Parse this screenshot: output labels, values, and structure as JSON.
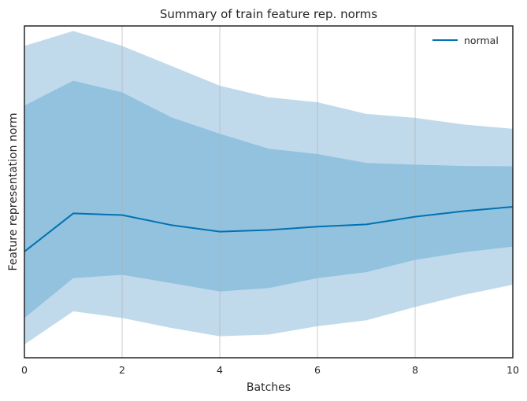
{
  "chart_data": {
    "type": "area",
    "title": "Summary of train feature rep. norms",
    "xlabel": "Batches",
    "ylabel": "Feature representation norm",
    "xlim": [
      0,
      10
    ],
    "ylim": [
      0,
      100
    ],
    "xticks": [
      0,
      2,
      4,
      6,
      8,
      10
    ],
    "show_y_ticks": false,
    "grid": "vertical",
    "legend": {
      "placement": "top-right",
      "entries": [
        "normal"
      ]
    },
    "x": [
      0,
      1,
      2,
      3,
      4,
      5,
      6,
      7,
      8,
      9,
      10
    ],
    "series": [
      {
        "name": "normal",
        "mean": [
          32,
          43.5,
          43,
          40,
          38,
          38.5,
          39.5,
          40.2,
          42.5,
          44.2,
          45.5
        ],
        "band_inner": {
          "lower": [
            12,
            24,
            25,
            22.5,
            20,
            21,
            24,
            25.8,
            29.5,
            31.8,
            33.5
          ],
          "upper": [
            76,
            83.5,
            80,
            72.5,
            67.5,
            63,
            61.4,
            58.7,
            58.2,
            57.8,
            57.7
          ]
        },
        "band_outer": {
          "lower": [
            4,
            14,
            12,
            9,
            6.5,
            7,
            9.5,
            11.3,
            15.3,
            19,
            22
          ],
          "upper": [
            94,
            98.5,
            94,
            88,
            82,
            78.5,
            77,
            73.5,
            72.3,
            70.3,
            69
          ]
        }
      }
    ],
    "colors": {
      "line": "#0072b2",
      "inner_band": "#92c2de",
      "outer_band": "#c0daeb",
      "grid": "#b0b0b0",
      "frame": "#262626"
    }
  }
}
